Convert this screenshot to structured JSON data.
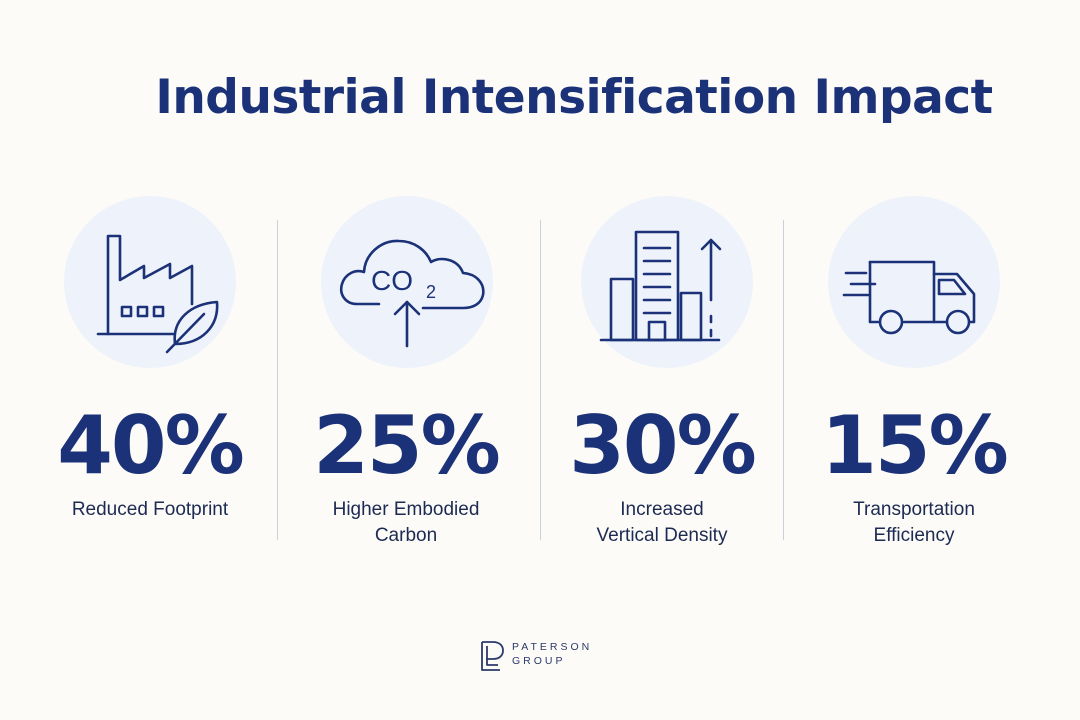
{
  "title": "Industrial Intensification Impact",
  "colors": {
    "primary": "#1b3278",
    "circle_bg": "#eef2fa",
    "background": "#fcfbf8",
    "divider": "#c9cfdc"
  },
  "stats": [
    {
      "value": "40%",
      "label_line1": "Reduced Footprint",
      "label_line2": "",
      "icon": "factory-leaf-icon"
    },
    {
      "value": "25%",
      "label_line1": "Higher Embodied",
      "label_line2": "Carbon",
      "icon": "co2-cloud-up-icon",
      "icon_text": "CO",
      "icon_subscript": "2"
    },
    {
      "value": "30%",
      "label_line1": "Increased",
      "label_line2": "Vertical Density",
      "icon": "buildings-up-icon"
    },
    {
      "value": "15%",
      "label_line1": "Transportation",
      "label_line2": "Efficiency",
      "icon": "delivery-truck-icon"
    }
  ],
  "logo": {
    "line1": "PATERSON",
    "line2": "GROUP"
  }
}
